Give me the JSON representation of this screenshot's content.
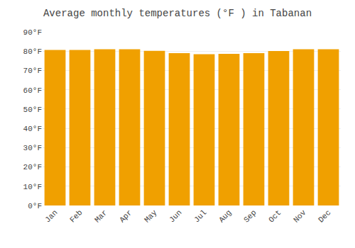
{
  "chart_data": {
    "type": "bar",
    "title": "Average monthly temperatures (°F ) in Tabanan",
    "categories": [
      "Jan",
      "Feb",
      "Mar",
      "Apr",
      "May",
      "Jun",
      "Jul",
      "Aug",
      "Sep",
      "Oct",
      "Nov",
      "Dec"
    ],
    "values": [
      80.6,
      80.6,
      81.0,
      81.0,
      80.2,
      79.0,
      78.4,
      78.6,
      79.0,
      80.1,
      81.0,
      81.0
    ],
    "color": "#F0A000",
    "ylim": [
      0,
      90
    ],
    "yticks": [
      {
        "value": 0,
        "label": "0°F"
      },
      {
        "value": 10,
        "label": "10°F"
      },
      {
        "value": 20,
        "label": "20°F"
      },
      {
        "value": 30,
        "label": "30°F"
      },
      {
        "value": 40,
        "label": "40°F"
      },
      {
        "value": 50,
        "label": "50°F"
      },
      {
        "value": 60,
        "label": "60°F"
      },
      {
        "value": 70,
        "label": "70°F"
      },
      {
        "value": 80,
        "label": "80°F"
      },
      {
        "value": 90,
        "label": "90°F"
      }
    ],
    "grid": true
  }
}
